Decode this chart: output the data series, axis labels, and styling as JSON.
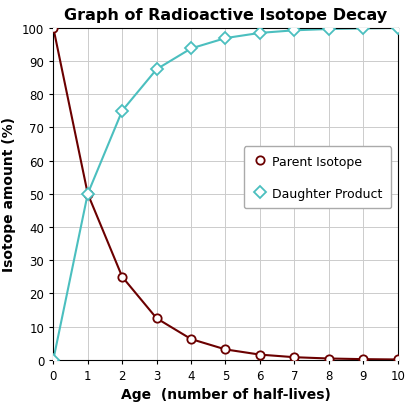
{
  "title": "Graph of Radioactive Isotope Decay",
  "xlabel": "Age  (number of half-lives)",
  "ylabel": "Isotope amount (%)",
  "x_values": [
    0,
    1,
    2,
    3,
    4,
    5,
    6,
    7,
    8,
    9,
    10
  ],
  "parent_values": [
    100,
    50,
    25,
    12.5,
    6.25,
    3.125,
    1.5625,
    0.78125,
    0.390625,
    0.1953125,
    0.09765625
  ],
  "daughter_values": [
    0,
    50,
    75,
    87.5,
    93.75,
    96.875,
    98.4375,
    99.21875,
    99.609375,
    99.8046875,
    99.90234375
  ],
  "parent_color": "#6B0000",
  "daughter_color": "#4BBFBF",
  "parent_label": "Parent Isotope",
  "daughter_label": "Daughter Product",
  "xlim": [
    0,
    10
  ],
  "ylim": [
    0,
    100
  ],
  "xticks": [
    0,
    1,
    2,
    3,
    4,
    5,
    6,
    7,
    8,
    9,
    10
  ],
  "yticks": [
    0,
    10,
    20,
    30,
    40,
    50,
    60,
    70,
    80,
    90,
    100
  ],
  "background_color": "#ffffff",
  "grid_color": "#cccccc",
  "title_fontsize": 11.5,
  "label_fontsize": 10,
  "tick_fontsize": 8.5,
  "legend_fontsize": 9
}
